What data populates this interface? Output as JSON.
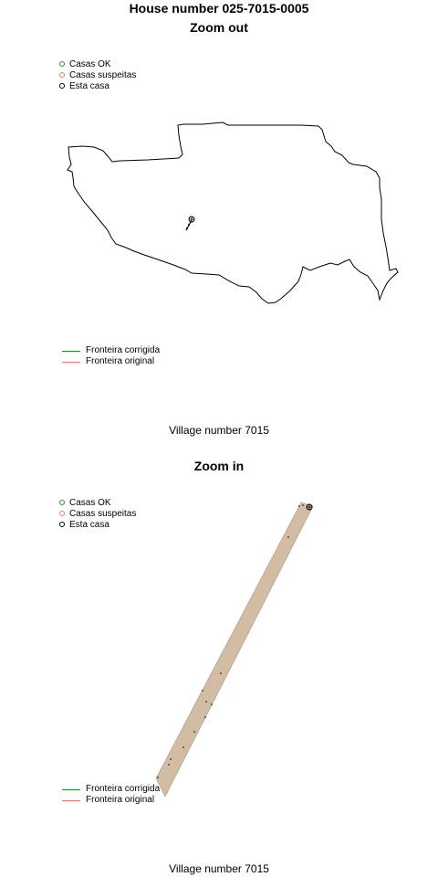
{
  "header": {
    "title": "House number 025-7015-0005"
  },
  "colors": {
    "ok": "#1a9a1a",
    "suspect": "#ff7070",
    "this": "#000000",
    "corrected": "#2a8a2a",
    "original": "#ff7070",
    "fill": "#d2bca4"
  },
  "panels": [
    {
      "title": "Zoom out",
      "points_legend": [
        "Casas OK",
        "Casas suspeitas",
        "Esta casa"
      ],
      "lines_legend": [
        "Fronteira corrigida",
        "Fronteira original"
      ],
      "footer": "Village number 7015"
    },
    {
      "title": "Zoom in",
      "points_legend": [
        "Casas OK",
        "Casas suspeitas",
        "Esta casa"
      ],
      "lines_legend": [
        "Fronteira corrigida",
        "Fronteira original"
      ],
      "footer": "Village number 7015"
    }
  ]
}
